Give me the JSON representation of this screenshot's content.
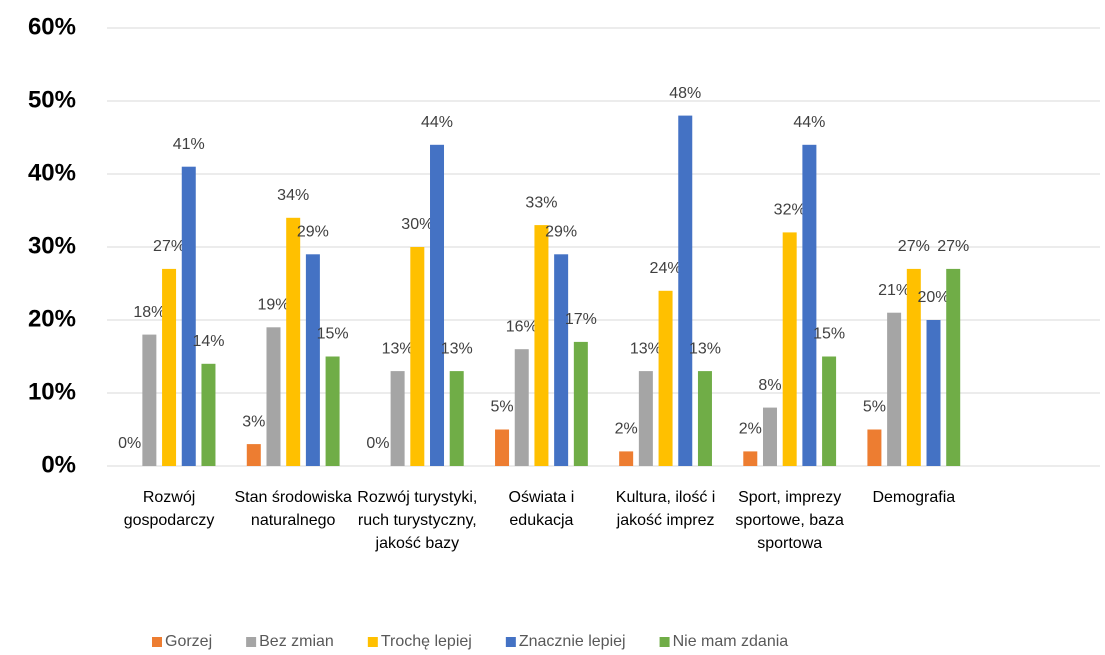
{
  "chart_data": {
    "type": "bar",
    "categories": [
      "Rozwój gospodarczy",
      "Stan środowiska naturalnego",
      "Rozwój turystyki, ruch turystyczny, jakość bazy",
      "Oświata i edukacja",
      "Kultura, ilość i jakość imprez",
      "Sport, imprezy sportowe, baza sportowa",
      "Demografia",
      null
    ],
    "series": [
      {
        "name": "Gorzej",
        "color": "#ed7d31",
        "values": [
          0,
          3,
          0,
          5,
          2,
          2,
          5,
          null
        ],
        "value_labels": [
          "0%",
          "3%",
          "0%",
          "5%",
          "2%",
          "2%",
          "5%",
          null
        ]
      },
      {
        "name": "Bez zmian",
        "color": "#a5a5a5",
        "values": [
          18,
          19,
          13,
          16,
          13,
          8,
          21,
          null
        ],
        "value_labels": [
          "18%",
          "19%",
          "13%",
          "16%",
          "13%",
          "8%",
          "21%",
          null
        ]
      },
      {
        "name": "Trochę lepiej",
        "color": "#ffc000",
        "values": [
          27,
          34,
          30,
          33,
          24,
          32,
          27,
          null
        ],
        "value_labels": [
          "27%",
          "34%",
          "30%",
          "33%",
          "24%",
          "32%",
          "27%",
          null
        ]
      },
      {
        "name": "Znacznie lepiej",
        "color": "#4472c4",
        "values": [
          41,
          29,
          44,
          29,
          48,
          44,
          20,
          null
        ],
        "value_labels": [
          "41%",
          "29%",
          "44%",
          "29%",
          "48%",
          "44%",
          "20%",
          null
        ]
      },
      {
        "name": "Nie mam zdania",
        "color": "#70ad47",
        "values": [
          14,
          15,
          13,
          17,
          13,
          15,
          27,
          null
        ],
        "value_labels": [
          "14%",
          "15%",
          "13%",
          "17%",
          "13%",
          "15%",
          "27%",
          null
        ]
      }
    ],
    "ylim": [
      0,
      60
    ],
    "yticks": [
      {
        "value": 0,
        "label": "0%"
      },
      {
        "value": 10,
        "label": "10%"
      },
      {
        "value": 20,
        "label": "20%"
      },
      {
        "value": 30,
        "label": "30%"
      },
      {
        "value": 40,
        "label": "40%"
      },
      {
        "value": 50,
        "label": "50%"
      },
      {
        "value": 60,
        "label": "60%"
      }
    ],
    "grid": true,
    "legend": "bottom"
  }
}
